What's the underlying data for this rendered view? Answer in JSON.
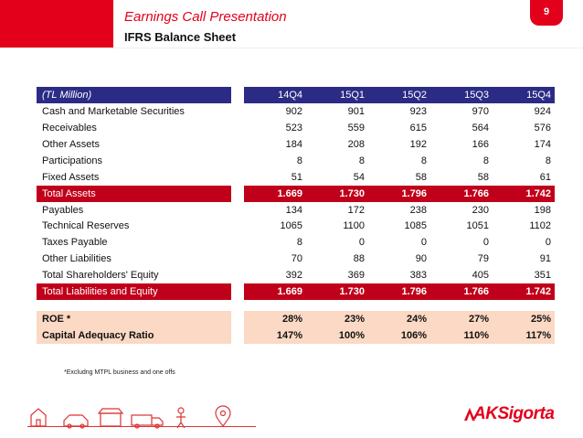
{
  "header": {
    "title": "Earnings Call Presentation",
    "subtitle": "IFRS Balance Sheet",
    "page_number": "9"
  },
  "table": {
    "columns": [
      "(TL Million)",
      "14Q4",
      "15Q1",
      "15Q2",
      "15Q3",
      "15Q4"
    ],
    "rows": [
      {
        "label": "Cash and Marketable Securities",
        "values": [
          "902",
          "901",
          "923",
          "970",
          "924"
        ],
        "style": "normal"
      },
      {
        "label": "Receivables",
        "values": [
          "523",
          "559",
          "615",
          "564",
          "576"
        ],
        "style": "normal"
      },
      {
        "label": "Other Assets",
        "values": [
          "184",
          "208",
          "192",
          "166",
          "174"
        ],
        "style": "normal"
      },
      {
        "label": "Participations",
        "values": [
          "8",
          "8",
          "8",
          "8",
          "8"
        ],
        "style": "normal"
      },
      {
        "label": "Fixed Assets",
        "values": [
          "51",
          "54",
          "58",
          "58",
          "61"
        ],
        "style": "normal"
      },
      {
        "label": "Total Assets",
        "values": [
          "1.669",
          "1.730",
          "1.796",
          "1.766",
          "1.742"
        ],
        "style": "total"
      },
      {
        "label": "Payables",
        "values": [
          "134",
          "172",
          "238",
          "230",
          "198"
        ],
        "style": "normal"
      },
      {
        "label": "Technical Reserves",
        "values": [
          "1065",
          "1100",
          "1085",
          "1051",
          "1102"
        ],
        "style": "normal"
      },
      {
        "label": "Taxes Payable",
        "values": [
          "8",
          "0",
          "0",
          "0",
          "0"
        ],
        "style": "normal"
      },
      {
        "label": "Other Liabilities",
        "values": [
          "70",
          "88",
          "90",
          "79",
          "91"
        ],
        "style": "normal"
      },
      {
        "label": "Total Shareholders' Equity",
        "values": [
          "392",
          "369",
          "383",
          "405",
          "351"
        ],
        "style": "normal"
      },
      {
        "label": "Total Liabilities and Equity",
        "values": [
          "1.669",
          "1.730",
          "1.796",
          "1.766",
          "1.742"
        ],
        "style": "total"
      }
    ],
    "ratios": [
      {
        "label": "ROE *",
        "values": [
          "28%",
          "23%",
          "24%",
          "27%",
          "25%"
        ]
      },
      {
        "label": "Capital Adequacy Ratio",
        "values": [
          "147%",
          "100%",
          "106%",
          "110%",
          "117%"
        ]
      }
    ]
  },
  "footnote": "*Excludng MTPL business and one offs",
  "brand": {
    "logo_text": "AKSigorta",
    "accent_color": "#e3001b",
    "header_row_color": "#2b2b86",
    "ratio_row_color": "#fbd9c4"
  },
  "footer_icons": [
    "house-icon",
    "car-icon",
    "store-icon",
    "truck-icon",
    "person-icon",
    "location-pin-icon"
  ]
}
